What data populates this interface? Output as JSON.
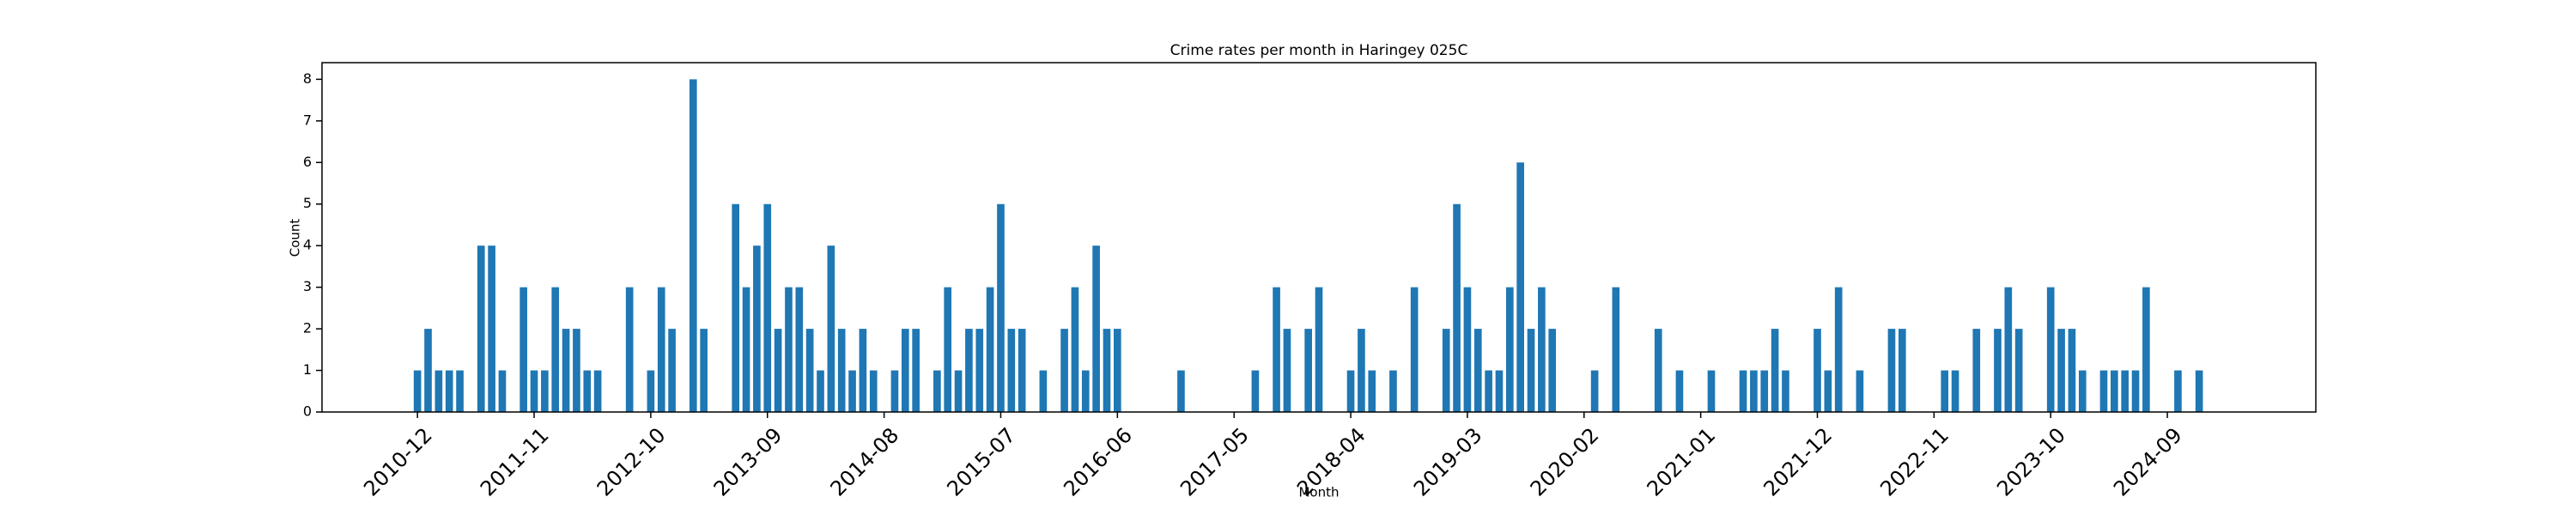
{
  "chart_data": {
    "type": "bar",
    "title": "Crime rates per month in Haringey 025C",
    "x_label": "Month",
    "y_label": "Count",
    "color": "#1f77b4",
    "x": [
      "2010-12",
      "2011-01",
      "2011-02",
      "2011-03",
      "2011-04",
      "2011-06",
      "2011-07",
      "2011-08",
      "2011-10",
      "2011-11",
      "2011-12",
      "2012-01",
      "2012-02",
      "2012-03",
      "2012-04",
      "2012-05",
      "2012-08",
      "2012-10",
      "2012-11",
      "2012-12",
      "2013-02",
      "2013-03",
      "2013-06",
      "2013-07",
      "2013-08",
      "2013-09",
      "2013-10",
      "2013-11",
      "2013-12",
      "2014-01",
      "2014-02",
      "2014-03",
      "2014-04",
      "2014-05",
      "2014-06",
      "2014-07",
      "2014-09",
      "2014-10",
      "2014-11",
      "2015-01",
      "2015-02",
      "2015-03",
      "2015-04",
      "2015-05",
      "2015-06",
      "2015-07",
      "2015-08",
      "2015-09",
      "2015-11",
      "2016-01",
      "2016-02",
      "2016-03",
      "2016-04",
      "2016-05",
      "2016-06",
      "2016-12",
      "2017-07",
      "2017-09",
      "2017-10",
      "2017-12",
      "2018-01",
      "2018-04",
      "2018-05",
      "2018-06",
      "2018-08",
      "2018-10",
      "2019-01",
      "2019-02",
      "2019-03",
      "2019-04",
      "2019-05",
      "2019-06",
      "2019-07",
      "2019-08",
      "2019-09",
      "2019-10",
      "2019-11",
      "2020-03",
      "2020-05",
      "2020-09",
      "2020-11",
      "2021-02",
      "2021-05",
      "2021-06",
      "2021-07",
      "2021-08",
      "2021-09",
      "2021-12",
      "2022-01",
      "2022-02",
      "2022-04",
      "2022-07",
      "2022-08",
      "2022-12",
      "2023-01",
      "2023-03",
      "2023-05",
      "2023-06",
      "2023-07",
      "2023-10",
      "2023-11",
      "2023-12",
      "2024-01",
      "2024-03",
      "2024-04",
      "2024-05",
      "2024-06",
      "2024-07",
      "2024-10",
      "2024-12"
    ],
    "values": [
      1,
      2,
      1,
      1,
      1,
      4,
      4,
      1,
      3,
      1,
      1,
      3,
      2,
      2,
      1,
      1,
      3,
      1,
      3,
      2,
      8,
      2,
      5,
      3,
      4,
      5,
      2,
      3,
      3,
      2,
      1,
      4,
      2,
      1,
      2,
      1,
      1,
      2,
      2,
      1,
      3,
      1,
      2,
      2,
      3,
      5,
      2,
      2,
      1,
      2,
      3,
      1,
      4,
      2,
      2,
      1,
      1,
      3,
      2,
      2,
      3,
      1,
      2,
      1,
      1,
      3,
      2,
      5,
      3,
      2,
      1,
      1,
      3,
      6,
      2,
      3,
      2,
      1,
      3,
      2,
      1,
      1,
      1,
      1,
      1,
      2,
      1,
      2,
      1,
      3,
      1,
      2,
      2,
      1,
      1,
      2,
      2,
      3,
      2,
      3,
      2,
      2,
      1,
      1,
      1,
      1,
      1,
      3,
      1,
      1
    ],
    "xlim": [
      "2010-03",
      "2025-11"
    ],
    "xticks": [
      "2010-12",
      "2011-11",
      "2012-10",
      "2013-09",
      "2014-08",
      "2015-07",
      "2016-06",
      "2017-05",
      "2018-04",
      "2019-03",
      "2020-02",
      "2021-01",
      "2021-12",
      "2022-11",
      "2023-10",
      "2024-09"
    ],
    "ylim": [
      0,
      8.4
    ],
    "yticks": [
      0,
      1,
      2,
      3,
      4,
      5,
      6,
      7,
      8
    ]
  }
}
